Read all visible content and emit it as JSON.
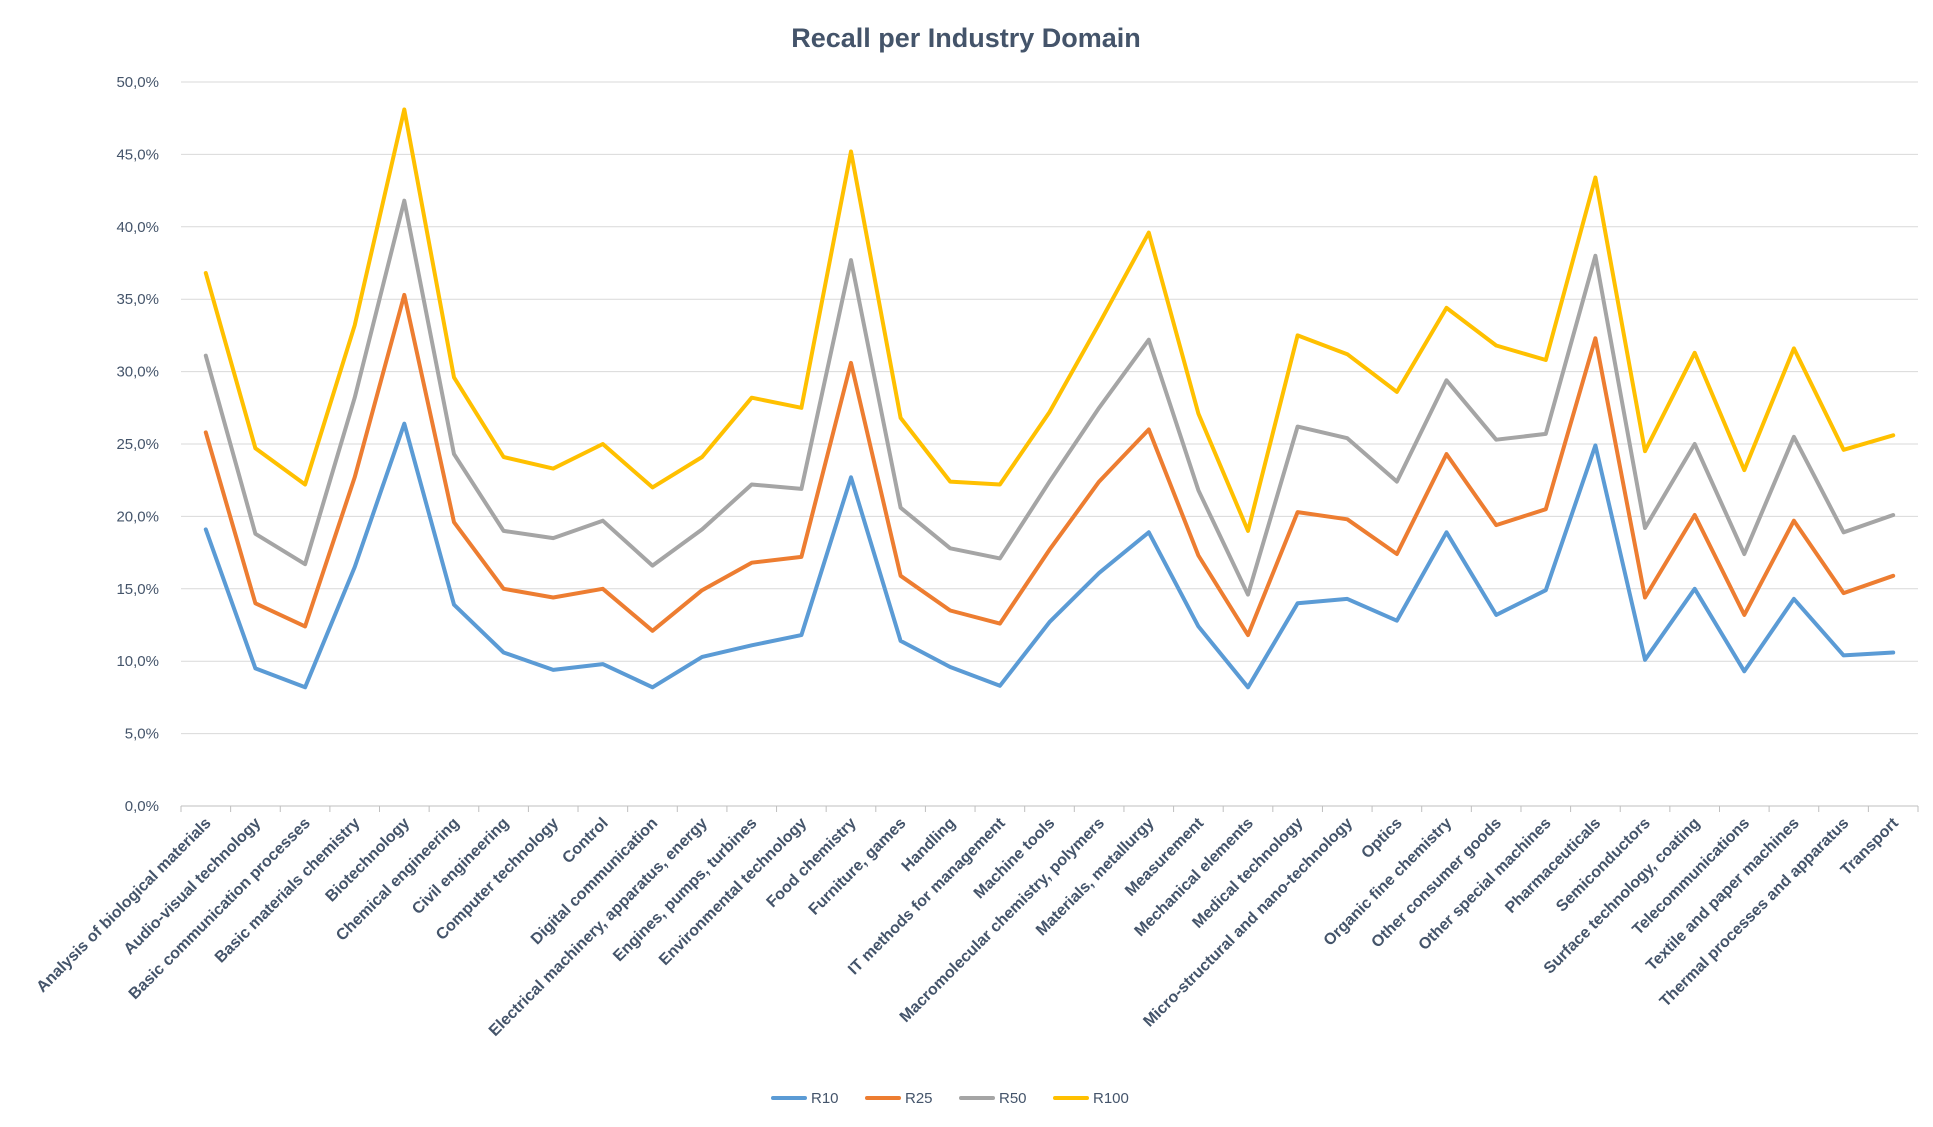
{
  "chart_data": {
    "type": "line",
    "title": "Recall per Industry Domain",
    "xlabel": "",
    "ylabel": "",
    "ylim": [
      0,
      0.5
    ],
    "yticks": [
      "0,0%",
      "5,0%",
      "10,0%",
      "15,0%",
      "20,0%",
      "25,0%",
      "30,0%",
      "35,0%",
      "40,0%",
      "45,0%",
      "50,0%"
    ],
    "grid": true,
    "legend_position": "bottom",
    "categories": [
      "Analysis of biological materials",
      "Audio-visual technology",
      "Basic communication processes",
      "Basic materials chemistry",
      "Biotechnology",
      "Chemical engineering",
      "Civil engineering",
      "Computer technology",
      "Control",
      "Digital communication",
      "Electrical machinery, apparatus, energy",
      "Engines, pumps, turbines",
      "Environmental technology",
      "Food chemistry",
      "Furniture, games",
      "Handling",
      "IT methods for management",
      "Machine tools",
      "Macromolecular chemistry, polymers",
      "Materials, metallurgy",
      "Measurement",
      "Mechanical elements",
      "Medical technology",
      "Micro-structural and nano-technology",
      "Optics",
      "Organic fine chemistry",
      "Other consumer goods",
      "Other special machines",
      "Pharmaceuticals",
      "Semiconductors",
      "Surface technology, coating",
      "Telecommunications",
      "Textile and paper machines",
      "Thermal processes and apparatus",
      "Transport"
    ],
    "series": [
      {
        "name": "R10",
        "color": "#5b9bd5",
        "values": [
          0.191,
          0.095,
          0.082,
          0.165,
          0.264,
          0.139,
          0.106,
          0.094,
          0.098,
          0.082,
          0.103,
          0.111,
          0.118,
          0.227,
          0.114,
          0.096,
          0.083,
          0.127,
          0.161,
          0.189,
          0.124,
          0.082,
          0.14,
          0.143,
          0.128,
          0.189,
          0.132,
          0.149,
          0.249,
          0.101,
          0.15,
          0.093,
          0.143,
          0.104,
          0.106
        ]
      },
      {
        "name": "R25",
        "color": "#ed7d31",
        "values": [
          0.258,
          0.14,
          0.124,
          0.227,
          0.353,
          0.196,
          0.15,
          0.144,
          0.15,
          0.121,
          0.149,
          0.168,
          0.172,
          0.306,
          0.159,
          0.135,
          0.126,
          0.177,
          0.224,
          0.26,
          0.173,
          0.118,
          0.203,
          0.198,
          0.174,
          0.243,
          0.194,
          0.205,
          0.323,
          0.144,
          0.201,
          0.132,
          0.197,
          0.147,
          0.159
        ]
      },
      {
        "name": "R50",
        "color": "#a5a5a5",
        "values": [
          0.311,
          0.188,
          0.167,
          0.282,
          0.418,
          0.243,
          0.19,
          0.185,
          0.197,
          0.166,
          0.191,
          0.222,
          0.219,
          0.377,
          0.206,
          0.178,
          0.171,
          0.224,
          0.275,
          0.322,
          0.218,
          0.146,
          0.262,
          0.254,
          0.224,
          0.294,
          0.253,
          0.257,
          0.38,
          0.192,
          0.25,
          0.174,
          0.255,
          0.189,
          0.201
        ]
      },
      {
        "name": "R100",
        "color": "#ffc000",
        "values": [
          0.368,
          0.247,
          0.222,
          0.332,
          0.481,
          0.296,
          0.241,
          0.233,
          0.25,
          0.22,
          0.241,
          0.282,
          0.275,
          0.452,
          0.268,
          0.224,
          0.222,
          0.272,
          0.333,
          0.396,
          0.271,
          0.19,
          0.325,
          0.312,
          0.286,
          0.344,
          0.318,
          0.308,
          0.434,
          0.245,
          0.313,
          0.232,
          0.316,
          0.246,
          0.256
        ]
      }
    ]
  }
}
